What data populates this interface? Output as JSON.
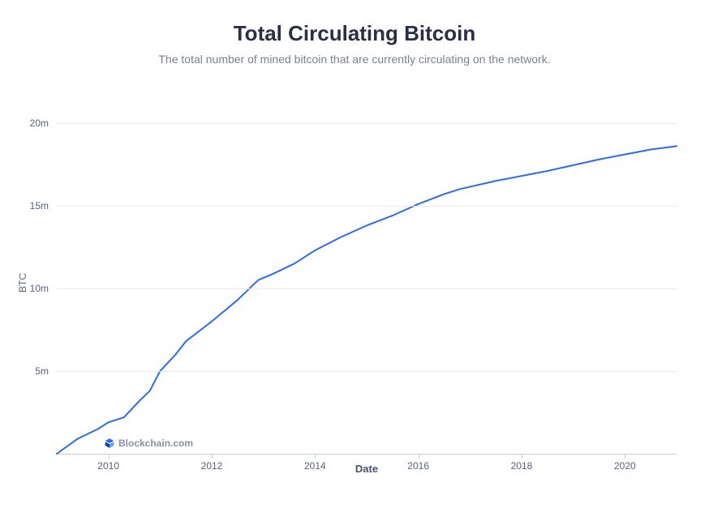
{
  "title": "Total Circulating Bitcoin",
  "subtitle": "The total number of mined bitcoin that are currently circulating on the network.",
  "watermark": "Blockchain.com",
  "chart": {
    "type": "line",
    "xlabel": "Date",
    "ylabel": "BTC",
    "line_color": "#2c6bed",
    "line_width": 2,
    "background_color": "#ffffff",
    "grid_color": "#e8e9ef",
    "axis_color": "#c7cad6",
    "title_color": "#2a2f45",
    "subtitle_color": "#7a8094",
    "tick_label_color": "#5a6178",
    "title_fontsize": 26,
    "subtitle_fontsize": 14,
    "tick_fontsize": 12,
    "x_range": [
      2009,
      2021
    ],
    "y_range": [
      0,
      22000000
    ],
    "y_ticks": [
      {
        "value": 5000000,
        "label": "5m"
      },
      {
        "value": 10000000,
        "label": "10m"
      },
      {
        "value": 15000000,
        "label": "15m"
      },
      {
        "value": 20000000,
        "label": "20m"
      }
    ],
    "x_ticks": [
      {
        "value": 2010,
        "label": "2010"
      },
      {
        "value": 2012,
        "label": "2012"
      },
      {
        "value": 2014,
        "label": "2014"
      },
      {
        "value": 2016,
        "label": "2016"
      },
      {
        "value": 2018,
        "label": "2018"
      },
      {
        "value": 2020,
        "label": "2020"
      }
    ],
    "series": [
      {
        "x": 2009.0,
        "y": 0
      },
      {
        "x": 2009.4,
        "y": 900000
      },
      {
        "x": 2009.8,
        "y": 1500000
      },
      {
        "x": 2010.0,
        "y": 1900000
      },
      {
        "x": 2010.3,
        "y": 2200000
      },
      {
        "x": 2010.6,
        "y": 3200000
      },
      {
        "x": 2010.8,
        "y": 3800000
      },
      {
        "x": 2011.0,
        "y": 5000000
      },
      {
        "x": 2011.3,
        "y": 6000000
      },
      {
        "x": 2011.5,
        "y": 6800000
      },
      {
        "x": 2012.0,
        "y": 8000000
      },
      {
        "x": 2012.5,
        "y": 9300000
      },
      {
        "x": 2012.9,
        "y": 10500000
      },
      {
        "x": 2013.2,
        "y": 10900000
      },
      {
        "x": 2013.6,
        "y": 11500000
      },
      {
        "x": 2014.0,
        "y": 12300000
      },
      {
        "x": 2014.5,
        "y": 13100000
      },
      {
        "x": 2015.0,
        "y": 13800000
      },
      {
        "x": 2015.5,
        "y": 14400000
      },
      {
        "x": 2016.0,
        "y": 15100000
      },
      {
        "x": 2016.5,
        "y": 15700000
      },
      {
        "x": 2016.8,
        "y": 16000000
      },
      {
        "x": 2017.5,
        "y": 16500000
      },
      {
        "x": 2018.0,
        "y": 16800000
      },
      {
        "x": 2018.5,
        "y": 17100000
      },
      {
        "x": 2019.0,
        "y": 17450000
      },
      {
        "x": 2019.5,
        "y": 17800000
      },
      {
        "x": 2020.0,
        "y": 18100000
      },
      {
        "x": 2020.5,
        "y": 18400000
      },
      {
        "x": 2021.0,
        "y": 18600000
      }
    ]
  }
}
